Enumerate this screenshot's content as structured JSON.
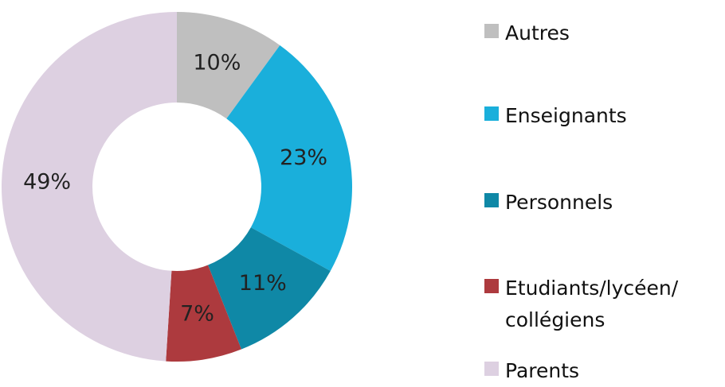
{
  "chart_data": {
    "type": "donut",
    "categories": [
      "Autres",
      "Enseignants",
      "Personnels",
      "Etudiants/lycéen/ collégiens",
      "Parents"
    ],
    "values": [
      10,
      23,
      11,
      7,
      49
    ],
    "value_labels": [
      "10%",
      "23%",
      "11%",
      "7%",
      "49%"
    ],
    "colors": [
      "#bfbfbf",
      "#1aafdb",
      "#0f88a6",
      "#ad3a3e",
      "#ddd0e1"
    ],
    "legend": "right"
  }
}
